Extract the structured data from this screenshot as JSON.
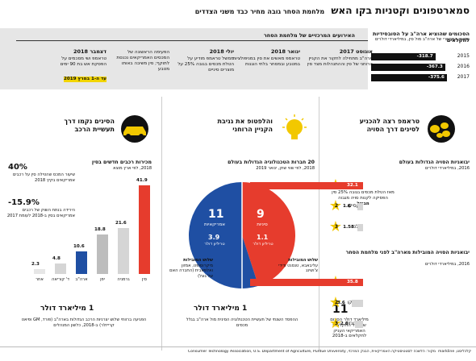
{
  "header": {
    "title": "סמארטפונים וקטניות בקו האש",
    "subtitle": "מלחמת הסחר גובה מחיר כבד משני הצדדים"
  },
  "spend": {
    "title": "הסכומים שהוציא ארה\"ב על הסובסידיות לחקלאים",
    "unit": "המאזן המסחרי של ארה\"ב מול סין, במיליארדי דולרים",
    "rows": [
      {
        "year": "2015",
        "value": "-318.7"
      },
      {
        "year": "2016",
        "value": "-367.3"
      },
      {
        "year": "2017",
        "value": "-375.6"
      }
    ]
  },
  "timeline": {
    "heading": "האירועים המרכזיים של מלחמת הסחר",
    "items": [
      {
        "date": "אוגוסט 2017",
        "text": "ארה\"ב מתחילה לחקור את הקניין הרוחני של סין וההתנהלות מצד סין"
      },
      {
        "date": "ינואר 2018",
        "text": "טראמפ מאשים את סין במניפולציות במטבע ובמסחר בלתי הוגנות"
      },
      {
        "date": "יולי 2018",
        "text": "ממשל טראמפ מודיע על הטלת מכסים בגובה 25% על מוצרים סיניים"
      },
      {
        "date": "",
        "text": "הפעימה הראשונה של המכסים האמריקאים נכנסת לתוקף; סין משיבה באותו מטבע"
      },
      {
        "date": "דצמבר 2018",
        "text": "טראמפ ושי מסכמים על הפסקת אש בת 90 ימים",
        "highlight": "עד ה-1 במרץ 2019"
      }
    ]
  },
  "sections": {
    "left": {
      "title1": "הסינים נקמו דרך",
      "title2": "תעשיית הרכב",
      "note_title": "מכירות רכבים חדשים בסין",
      "note_unit": "2018, לפי ארץ מוצא",
      "stat1": "40%",
      "stat1_text": "שיעור המכס שהטילה סין על רכבים אמריקאים בקיץ 2018",
      "stat2": "-15.9%",
      "stat2_text": "הירידה בנתח השוק של רכבים אמריקאים בסין ב-2018 לעומת 2017",
      "footer_big": "1 מיליארד דולר",
      "footer_text": "הפגיעה ברווחי שלוש יצרניות הרכב הגדולות בארה\"ב (פורד, GM ופיאט קרייזלר) ב-2018, כלשון המנהלים"
    },
    "mid": {
      "title1": "והלפטופ את גניבת",
      "title2": "הקניין הרוחני",
      "note_title": "20 חברות הטכנולוגיה הגדולות בעולם",
      "note_unit": "2018, לפי שווי שוק, ינואר 2019",
      "china_count": "9",
      "china_label": "סיניות",
      "china_value": "1.1",
      "china_unit": "טריליון דולר",
      "us_count": "11",
      "us_label": "אמריקאיות",
      "us_value": "3.9",
      "us_unit": "טריליון דולר",
      "china_who": "שלוש המובילות",
      "china_names": "עליבאבא, טנסנט ודידי צ'ושינג",
      "us_who": "שלוש המובילות",
      "us_names": "מיקרוסופט, אמזון ואלפאבית (החברה האם של גוגל)",
      "footer_big": "1 מיליארד דולר",
      "footer_text": "ההפסד השנתי של תעשיית הטכנולוגיה הסינית מול ארה\"ב בגלל מכסים"
    },
    "right": {
      "title1": "טראמפ רצה להכניע",
      "title2": "לסינים דרך הסויה",
      "note_title": "יבואניות הסויה הגדולות בעולם",
      "note_unit": "2016, במיליארדי דולרים",
      "side_text": "מאז הטלת מכסים בגובה 25% סין הפסיקה לקנות סויה מגבוה",
      "side_bold": "מבריל",
      "note2_title": "יבואניות הסויה המובילות מארה\"ב לפני מלחמת הסחר",
      "note2_unit": "2016, במיליארדי דולרים",
      "stat_big": "11",
      "stat_text": "מיליארד דולר הסכום שמשרד החקלאות האמריקאי העניק לחקלאים ב-2018"
    }
  },
  "chart_data": [
    {
      "type": "bar",
      "title": "מכירות רכבים חדשים בסין",
      "categories": [
        "סין",
        "גרמניה",
        "יפן",
        "ארה\"ב",
        "ד' קוריאה",
        "אחר"
      ],
      "values": [
        41.9,
        21.6,
        18.8,
        10.6,
        4.8,
        2.3
      ],
      "ylabel": "אחוז"
    },
    {
      "type": "pie",
      "title": "20 חברות הטכנולוגיה הגדולות בעולם",
      "categories": [
        "סיניות",
        "אמריקאיות"
      ],
      "values": [
        9,
        11
      ]
    },
    {
      "type": "bar",
      "title": "יבואניות הסויה הגדולות בעולם",
      "categories": [
        "סין",
        "מקסיקו",
        "הולנד"
      ],
      "values": [
        32.1,
        1.6,
        1.58
      ]
    },
    {
      "type": "bar",
      "title": "יבואניות הסויה המובילות מארה\"ב לפני מלחמת הסחר",
      "categories": [
        "סין",
        "מקסיקו",
        "אינדונזיה"
      ],
      "values": [
        35.8,
        3.6,
        2.6
      ]
    }
  ],
  "labels": {
    "pct_suffix": "%",
    "rank1": "1",
    "rank2": "2",
    "rank3": "3"
  },
  "footer": {
    "source": "מקור: הלשכה לסטטיסטיקה האמריקאית, הבנק המרכזי, Consumer Technology Association, U.S. Department of Agriculture, Purdue University",
    "credit": "קלכליסט, markline"
  },
  "colors": {
    "red": "#e63c2d",
    "blue": "#1f4fa3",
    "yellow": "#f2c800",
    "gray": "#d5d5d5"
  }
}
